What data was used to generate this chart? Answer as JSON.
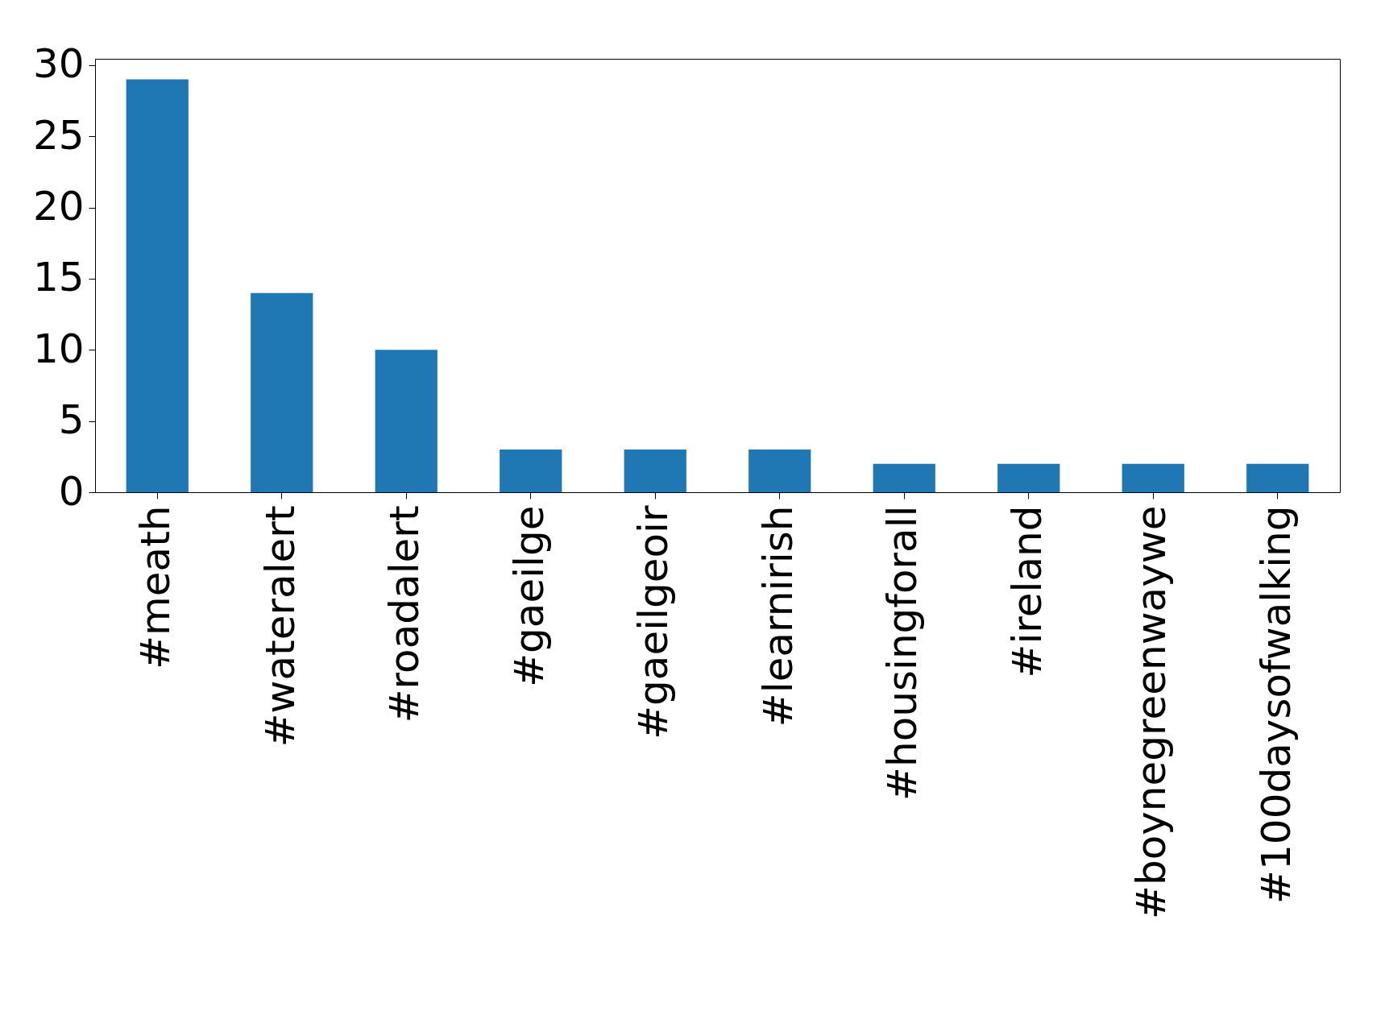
{
  "chart_data": {
    "type": "bar",
    "categories": [
      "#meath",
      "#wateralert",
      "#roadalert",
      "#gaeilge",
      "#gaeilgeoir",
      "#learnirish",
      "#housingforall",
      "#ireland",
      "#boynegreenwaywe",
      "#100daysofwalking"
    ],
    "values": [
      29,
      14,
      10,
      3,
      3,
      3,
      2,
      2,
      2,
      2
    ],
    "color": "#1f77b4",
    "ylim": [
      0,
      30.45
    ],
    "yticks": [
      0,
      5,
      10,
      15,
      20,
      25,
      30
    ],
    "grid": false
  }
}
